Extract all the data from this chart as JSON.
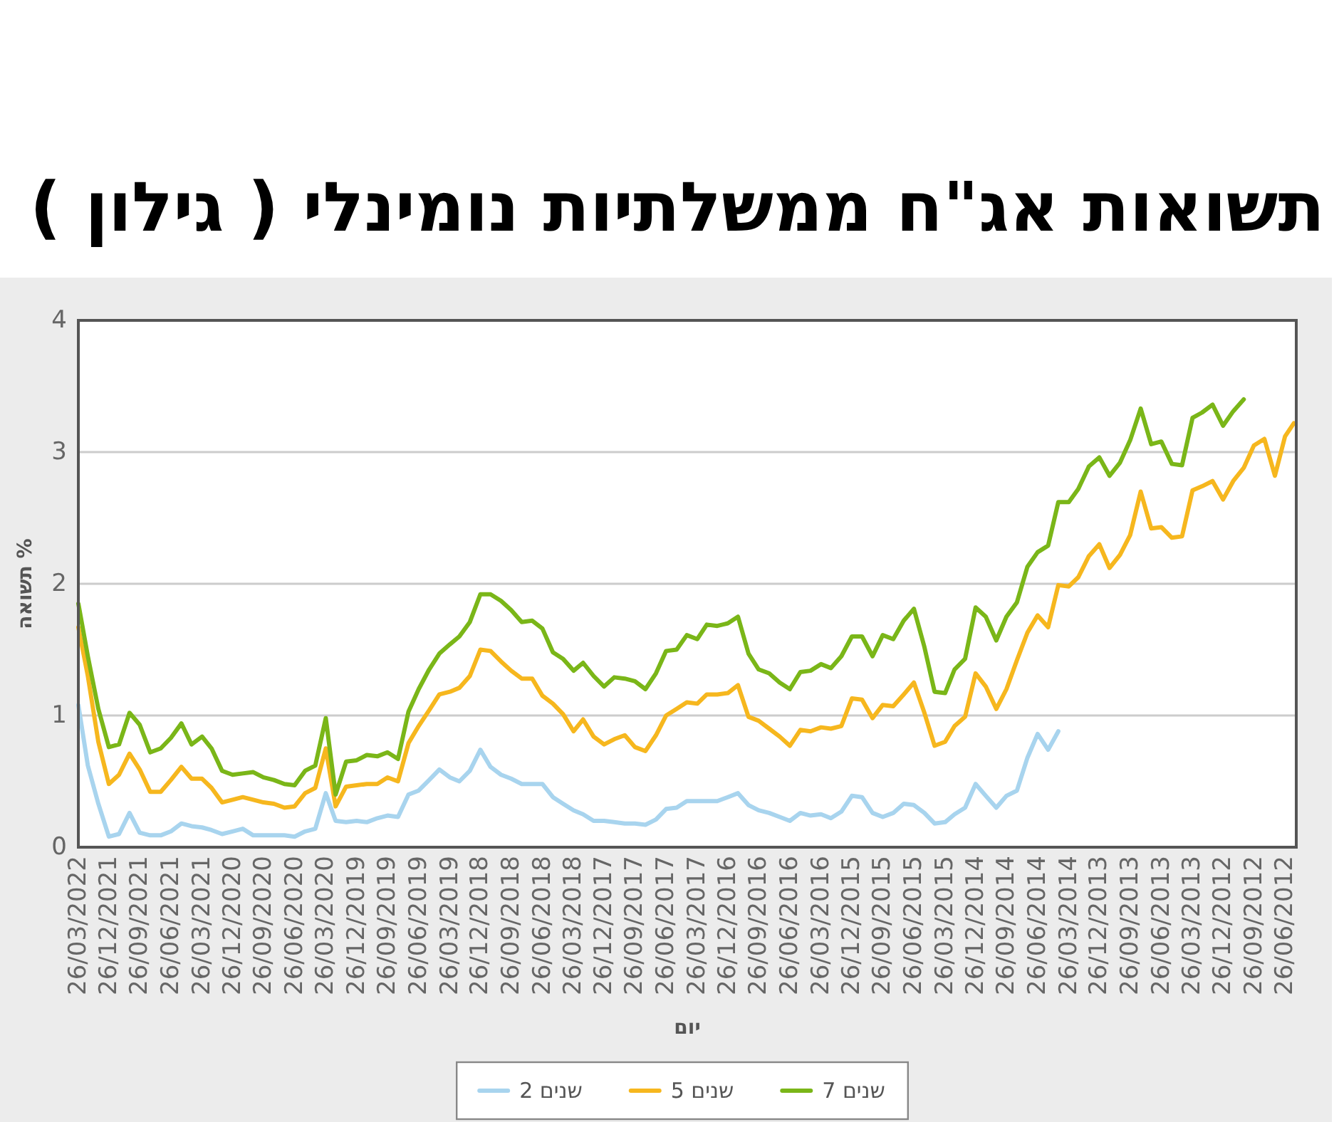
{
  "chart_data": {
    "type": "line",
    "title": "תשואות אג\"ח ממשלתיות נומינלי ( גילון )",
    "xlabel": "יום",
    "ylabel": "תשואה %",
    "x": [
      "2022-03-26",
      "2022-02-26",
      "2022-01-26",
      "2021-12-26",
      "2021-11-26",
      "2021-10-26",
      "2021-09-26",
      "2021-08-26",
      "2021-07-26",
      "2021-06-26",
      "2021-05-26",
      "2021-04-26",
      "2021-03-26",
      "2021-02-26",
      "2021-01-26",
      "2020-12-26",
      "2020-11-26",
      "2020-10-26",
      "2020-09-26",
      "2020-08-26",
      "2020-07-26",
      "2020-06-26",
      "2020-05-26",
      "2020-04-26",
      "2020-03-26",
      "2020-02-26",
      "2020-01-26",
      "2019-12-26",
      "2019-11-26",
      "2019-10-26",
      "2019-09-26",
      "2019-08-26",
      "2019-07-26",
      "2019-06-26",
      "2019-05-26",
      "2019-04-26",
      "2019-03-26",
      "2019-02-26",
      "2019-01-26",
      "2018-12-26",
      "2018-11-26",
      "2018-10-26",
      "2018-09-26",
      "2018-08-26",
      "2018-07-26",
      "2018-06-26",
      "2018-05-26",
      "2018-04-26",
      "2018-03-26",
      "2018-02-26",
      "2018-01-26",
      "2017-12-26",
      "2017-11-26",
      "2017-10-26",
      "2017-09-26",
      "2017-08-26",
      "2017-07-26",
      "2017-06-26",
      "2017-05-26",
      "2017-04-26",
      "2017-03-26",
      "2017-02-26",
      "2017-01-26",
      "2016-12-26",
      "2016-11-26",
      "2016-10-26",
      "2016-09-26",
      "2016-08-26",
      "2016-07-26",
      "2016-06-26",
      "2016-05-26",
      "2016-04-26",
      "2016-03-26",
      "2016-02-26",
      "2016-01-26",
      "2015-12-26",
      "2015-11-26",
      "2015-10-26",
      "2015-09-26",
      "2015-08-26",
      "2015-07-26",
      "2015-06-26",
      "2015-05-26",
      "2015-04-26",
      "2015-03-26",
      "2015-02-26",
      "2015-01-26",
      "2014-12-26",
      "2014-11-26",
      "2014-10-26",
      "2014-09-26",
      "2014-08-26",
      "2014-07-26",
      "2014-06-26",
      "2014-05-26",
      "2014-04-26",
      "2014-03-26",
      "2014-02-26",
      "2014-01-26",
      "2013-12-26",
      "2013-11-26",
      "2013-10-26",
      "2013-09-26",
      "2013-08-26",
      "2013-07-26",
      "2013-06-26",
      "2013-05-26",
      "2013-04-26",
      "2013-03-26",
      "2013-02-26",
      "2013-01-26",
      "2012-12-26",
      "2012-11-26",
      "2012-10-26",
      "2012-09-26",
      "2012-08-26",
      "2012-07-26",
      "2012-06-26",
      "2012-05-31"
    ],
    "series": [
      {
        "name": "2 שנים",
        "color": "#a8d4ee",
        "values": [
          1.08,
          0.62,
          0.33,
          0.08,
          0.1,
          0.26,
          0.11,
          0.09,
          0.09,
          0.12,
          0.18,
          0.16,
          0.15,
          0.13,
          0.1,
          0.12,
          0.14,
          0.09,
          0.09,
          0.09,
          0.09,
          0.08,
          0.12,
          0.14,
          0.41,
          0.2,
          0.19,
          0.2,
          0.19,
          0.22,
          0.24,
          0.23,
          0.4,
          0.43,
          0.51,
          0.59,
          0.53,
          0.5,
          0.58,
          0.74,
          0.61,
          0.55,
          0.52,
          0.48,
          0.48,
          0.48,
          0.38,
          0.33,
          0.28,
          0.25,
          0.2,
          0.2,
          0.19,
          0.18,
          0.18,
          0.17,
          0.21,
          0.29,
          0.3,
          0.35,
          0.35,
          0.35,
          0.35,
          0.38,
          0.41,
          0.32,
          0.28,
          0.26,
          0.23,
          0.2,
          0.26,
          0.24,
          0.25,
          0.22,
          0.27,
          0.39,
          0.38,
          0.26,
          0.23,
          0.26,
          0.33,
          0.32,
          0.26,
          0.18,
          0.19,
          0.25,
          0.3,
          0.48,
          0.39,
          0.3,
          0.39,
          0.43,
          0.68,
          0.86,
          0.74,
          0.88,
          null,
          null,
          null,
          null,
          null,
          null,
          null,
          null,
          null,
          null,
          null,
          null,
          null,
          null,
          null,
          null,
          null,
          null,
          null,
          null,
          null,
          null,
          null
        ]
      },
      {
        "name": "5 שנים",
        "color": "#f6b71e",
        "values": [
          1.67,
          1.3,
          0.8,
          0.48,
          0.55,
          0.71,
          0.59,
          0.42,
          0.42,
          0.51,
          0.61,
          0.52,
          0.52,
          0.45,
          0.34,
          0.36,
          0.38,
          0.36,
          0.34,
          0.33,
          0.3,
          0.31,
          0.41,
          0.45,
          0.75,
          0.31,
          0.46,
          0.47,
          0.48,
          0.48,
          0.53,
          0.5,
          0.79,
          0.92,
          1.04,
          1.16,
          1.18,
          1.21,
          1.3,
          1.5,
          1.49,
          1.41,
          1.34,
          1.28,
          1.28,
          1.15,
          1.09,
          1.01,
          0.88,
          0.97,
          0.84,
          0.78,
          0.82,
          0.85,
          0.76,
          0.73,
          0.85,
          1.0,
          1.05,
          1.1,
          1.09,
          1.16,
          1.16,
          1.17,
          1.23,
          0.99,
          0.96,
          0.9,
          0.84,
          0.77,
          0.89,
          0.88,
          0.91,
          0.9,
          0.92,
          1.13,
          1.12,
          0.98,
          1.08,
          1.07,
          1.16,
          1.25,
          1.02,
          0.77,
          0.8,
          0.92,
          0.99,
          1.32,
          1.22,
          1.05,
          1.2,
          1.42,
          1.63,
          1.76,
          1.67,
          1.99,
          1.98,
          2.05,
          2.21,
          2.3,
          2.12,
          2.22,
          2.37,
          2.7,
          2.42,
          2.43,
          2.35,
          2.36,
          2.71,
          2.74,
          2.78,
          2.64,
          2.78,
          2.88,
          3.05,
          3.1,
          2.82,
          3.12,
          3.22
        ]
      },
      {
        "name": "7 שנים",
        "color": "#7ab618",
        "values": [
          1.85,
          1.45,
          1.05,
          0.76,
          0.78,
          1.02,
          0.93,
          0.72,
          0.75,
          0.83,
          0.94,
          0.78,
          0.84,
          0.75,
          0.58,
          0.55,
          0.56,
          0.57,
          0.53,
          0.51,
          0.48,
          0.47,
          0.58,
          0.62,
          0.98,
          0.4,
          0.65,
          0.66,
          0.7,
          0.69,
          0.72,
          0.67,
          1.03,
          1.2,
          1.35,
          1.47,
          1.54,
          1.6,
          1.71,
          1.92,
          1.92,
          1.87,
          1.8,
          1.71,
          1.72,
          1.66,
          1.48,
          1.43,
          1.34,
          1.4,
          1.3,
          1.22,
          1.29,
          1.28,
          1.26,
          1.2,
          1.32,
          1.49,
          1.5,
          1.61,
          1.58,
          1.69,
          1.68,
          1.7,
          1.75,
          1.47,
          1.35,
          1.32,
          1.25,
          1.2,
          1.33,
          1.34,
          1.39,
          1.36,
          1.45,
          1.6,
          1.6,
          1.45,
          1.61,
          1.58,
          1.72,
          1.81,
          1.52,
          1.18,
          1.17,
          1.35,
          1.43,
          1.82,
          1.75,
          1.57,
          1.75,
          1.86,
          2.13,
          2.24,
          2.29,
          2.62,
          2.62,
          2.72,
          2.89,
          2.96,
          2.82,
          2.92,
          3.09,
          3.33,
          3.06,
          3.08,
          2.91,
          2.9,
          3.26,
          3.3,
          3.36,
          3.2,
          3.31,
          3.4,
          null,
          null,
          null,
          null,
          null
        ]
      }
    ],
    "xlim": [
      "2022-03-26",
      "2012-05-24"
    ],
    "xticks": [
      {
        "value": "2022-03-26",
        "label": "26/03/2022"
      },
      {
        "value": "2021-12-26",
        "label": "26/12/2021"
      },
      {
        "value": "2021-09-26",
        "label": "26/09/2021"
      },
      {
        "value": "2021-06-26",
        "label": "26/06/2021"
      },
      {
        "value": "2021-03-26",
        "label": "26/03/2021"
      },
      {
        "value": "2020-12-26",
        "label": "26/12/2020"
      },
      {
        "value": "2020-09-26",
        "label": "26/09/2020"
      },
      {
        "value": "2020-06-26",
        "label": "26/06/2020"
      },
      {
        "value": "2020-03-26",
        "label": "26/03/2020"
      },
      {
        "value": "2019-12-26",
        "label": "26/12/2019"
      },
      {
        "value": "2019-09-26",
        "label": "26/09/2019"
      },
      {
        "value": "2019-06-26",
        "label": "26/06/2019"
      },
      {
        "value": "2019-03-26",
        "label": "26/03/2019"
      },
      {
        "value": "2018-12-26",
        "label": "26/12/2018"
      },
      {
        "value": "2018-09-26",
        "label": "26/09/2018"
      },
      {
        "value": "2018-06-26",
        "label": "26/06/2018"
      },
      {
        "value": "2018-03-26",
        "label": "26/03/2018"
      },
      {
        "value": "2017-12-26",
        "label": "26/12/2017"
      },
      {
        "value": "2017-09-26",
        "label": "26/09/2017"
      },
      {
        "value": "2017-06-26",
        "label": "26/06/2017"
      },
      {
        "value": "2017-03-26",
        "label": "26/03/2017"
      },
      {
        "value": "2016-12-26",
        "label": "26/12/2016"
      },
      {
        "value": "2016-09-26",
        "label": "26/09/2016"
      },
      {
        "value": "2016-06-26",
        "label": "26/06/2016"
      },
      {
        "value": "2016-03-26",
        "label": "26/03/2016"
      },
      {
        "value": "2015-12-26",
        "label": "26/12/2015"
      },
      {
        "value": "2015-09-26",
        "label": "26/09/2015"
      },
      {
        "value": "2015-06-26",
        "label": "26/06/2015"
      },
      {
        "value": "2015-03-26",
        "label": "26/03/2015"
      },
      {
        "value": "2014-12-26",
        "label": "26/12/2014"
      },
      {
        "value": "2014-09-26",
        "label": "26/09/2014"
      },
      {
        "value": "2014-06-26",
        "label": "26/06/2014"
      },
      {
        "value": "2014-03-26",
        "label": "26/03/2014"
      },
      {
        "value": "2013-12-26",
        "label": "26/12/2013"
      },
      {
        "value": "2013-09-26",
        "label": "26/09/2013"
      },
      {
        "value": "2013-06-26",
        "label": "26/06/2013"
      },
      {
        "value": "2013-03-26",
        "label": "26/03/2013"
      },
      {
        "value": "2012-12-26",
        "label": "26/12/2012"
      },
      {
        "value": "2012-09-26",
        "label": "26/09/2012"
      },
      {
        "value": "2012-06-26",
        "label": "26/06/2012"
      }
    ],
    "ylim": [
      0,
      4
    ],
    "yticks": [
      0,
      1,
      2,
      3,
      4
    ],
    "grid": "y",
    "legend": "bottom"
  }
}
